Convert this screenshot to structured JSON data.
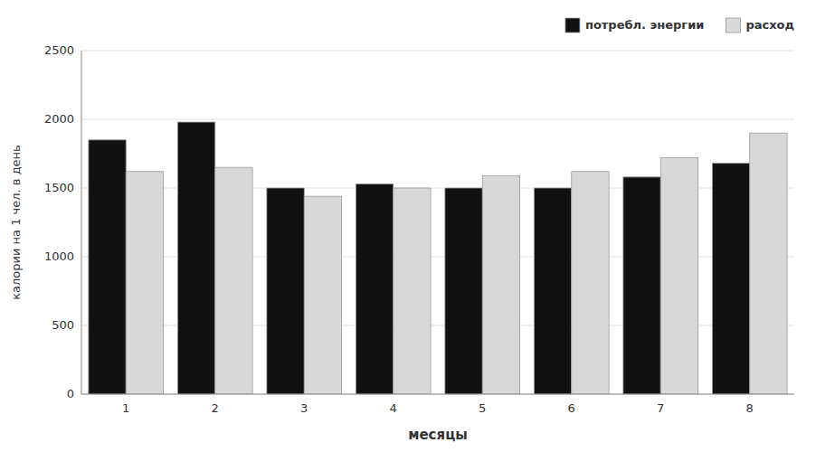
{
  "chart_data": {
    "type": "bar",
    "xlabel": "месяцы",
    "ylabel": "калории на 1 чел. в день",
    "categories": [
      "1",
      "2",
      "3",
      "4",
      "5",
      "6",
      "7",
      "8"
    ],
    "series": [
      {
        "name": "потребл. энергии",
        "color": "#111111",
        "values": [
          1850,
          1980,
          1500,
          1530,
          1500,
          1500,
          1580,
          1680
        ]
      },
      {
        "name": "расход",
        "color": "#d8d8d8",
        "values": [
          1620,
          1650,
          1440,
          1500,
          1590,
          1620,
          1720,
          1900
        ]
      }
    ],
    "ylim": [
      0,
      2500
    ],
    "yticks": [
      0,
      500,
      1000,
      1500,
      2000,
      2500
    ],
    "grid": true,
    "legend": "upper right"
  }
}
